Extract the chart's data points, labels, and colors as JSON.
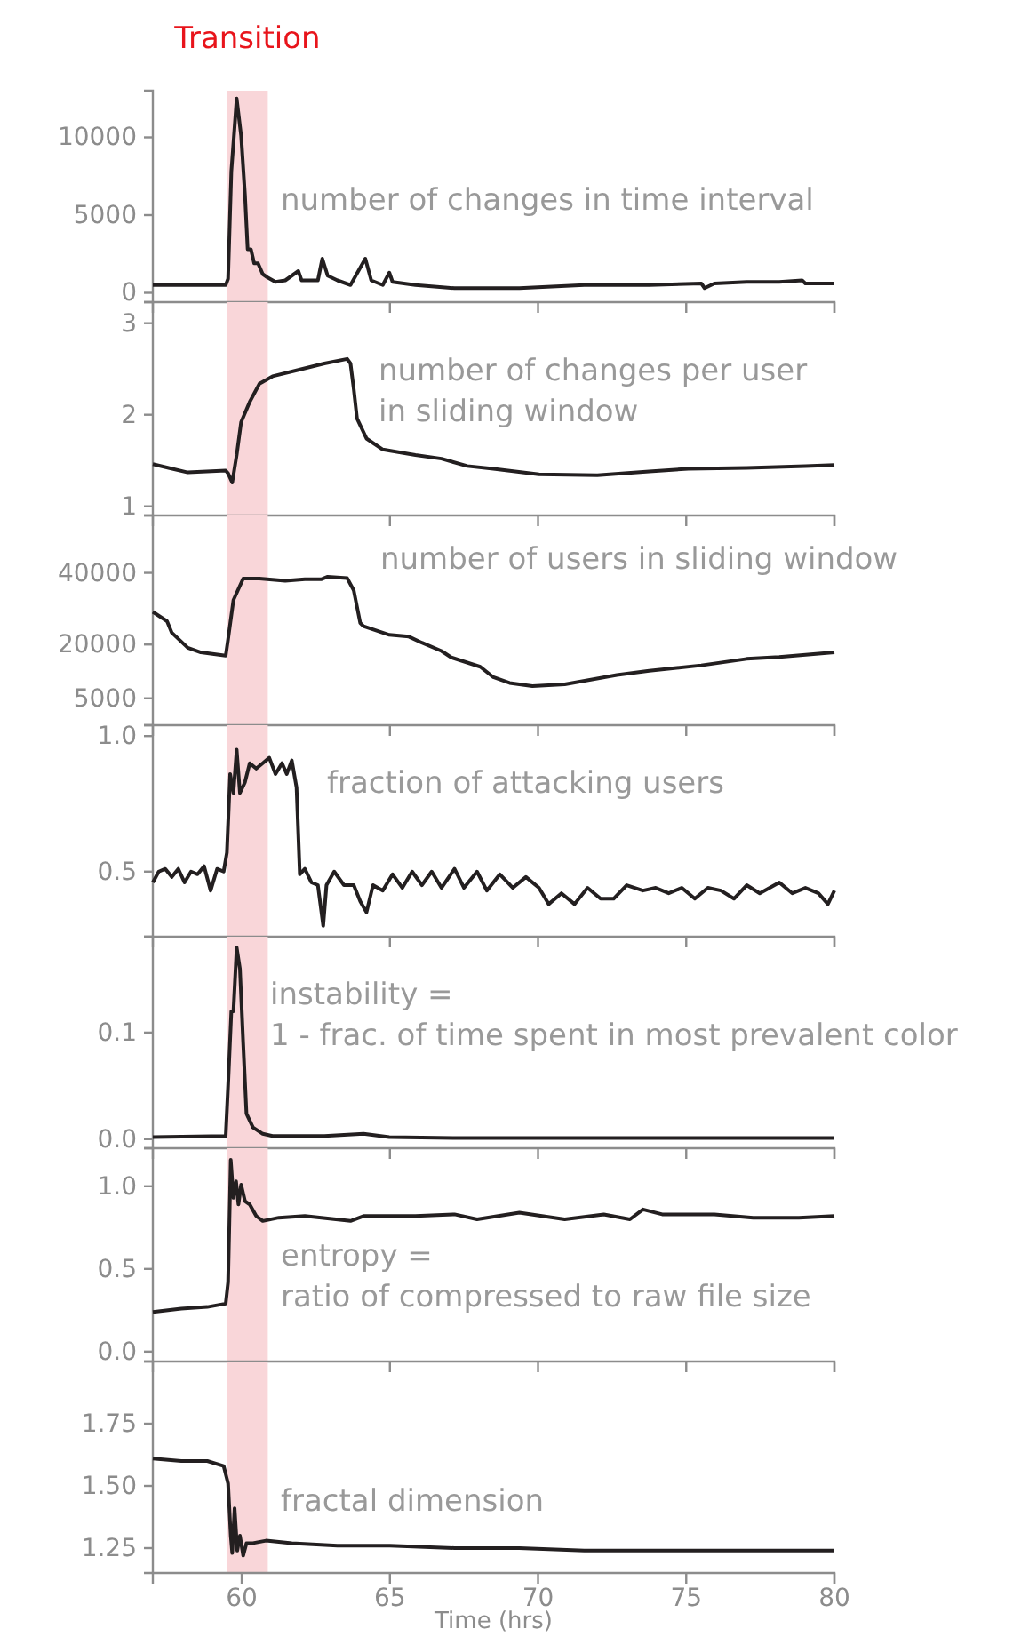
{
  "chart_data": [
    {
      "type": "line",
      "title": "number of changes in time interval",
      "xlim": [
        57,
        80
      ],
      "xticks": [
        60,
        65,
        70,
        75,
        80
      ],
      "ylim": [
        -600,
        13000
      ],
      "yticks": [
        0,
        5000,
        10000
      ],
      "tick_labels": "y",
      "grid": false,
      "bands": [
        {
          "axis": "x",
          "from": 59.5,
          "to": 60.88,
          "label": "Transition",
          "color": "#f9d6d9"
        }
      ],
      "series": [
        {
          "color": "#231f20",
          "x": [
            57.0,
            58.4,
            59.46,
            59.54,
            59.65,
            59.83,
            59.98,
            60.11,
            60.2,
            60.31,
            60.42,
            60.55,
            60.71,
            60.86,
            61.14,
            61.47,
            61.91,
            62.02,
            62.57,
            62.72,
            62.9,
            63.23,
            63.67,
            64.17,
            64.37,
            64.76,
            64.98,
            65.09,
            65.86,
            67.18,
            69.37,
            71.56,
            73.75,
            75.51,
            75.62,
            75.95,
            77.04,
            78.14,
            78.91,
            79.02,
            80.0
          ],
          "values": [
            500,
            500,
            500,
            900,
            7800,
            12500,
            10100,
            6300,
            2800,
            2800,
            1900,
            1900,
            1200,
            1000,
            700,
            800,
            1400,
            800,
            800,
            2200,
            1100,
            800,
            500,
            2200,
            800,
            500,
            1300,
            700,
            500,
            300,
            300,
            500,
            500,
            600,
            300,
            600,
            700,
            700,
            800,
            600,
            600
          ]
        }
      ]
    },
    {
      "type": "line",
      "title": "number of changes per user\nin sliding window",
      "xlim": [
        57,
        80
      ],
      "xticks": [
        60,
        65,
        70,
        75,
        80
      ],
      "ylim": [
        0.9,
        3.23
      ],
      "yticks": [
        1,
        2,
        3
      ],
      "tick_labels": "y",
      "grid": false,
      "bands": [
        {
          "axis": "x",
          "from": 59.5,
          "to": 60.88,
          "color": "#f9d6d9"
        }
      ],
      "series": [
        {
          "color": "#231f20",
          "x": [
            57.0,
            57.53,
            58.18,
            59.46,
            59.54,
            59.68,
            59.83,
            59.98,
            60.27,
            60.6,
            61.04,
            61.91,
            62.79,
            63.56,
            63.67,
            63.78,
            63.89,
            64.21,
            64.76,
            65.86,
            66.74,
            67.61,
            68.49,
            70.03,
            72.0,
            73.75,
            75.07,
            77.04,
            79.02,
            80.0
          ],
          "values": [
            1.46,
            1.42,
            1.37,
            1.39,
            1.36,
            1.26,
            1.56,
            1.92,
            2.14,
            2.34,
            2.42,
            2.49,
            2.56,
            2.61,
            2.56,
            2.28,
            1.96,
            1.74,
            1.62,
            1.56,
            1.52,
            1.44,
            1.41,
            1.35,
            1.34,
            1.38,
            1.41,
            1.42,
            1.44,
            1.45
          ]
        }
      ]
    },
    {
      "type": "line",
      "title": "number of users in sliding window",
      "xlim": [
        57,
        80
      ],
      "xticks": [
        60,
        65,
        70,
        75,
        80
      ],
      "ylim": [
        -2500,
        56000
      ],
      "yticks": [
        5000,
        20000,
        40000
      ],
      "tick_labels": "y",
      "grid": false,
      "bands": [
        {
          "axis": "x",
          "from": 59.5,
          "to": 60.88,
          "color": "#f9d6d9"
        }
      ],
      "series": [
        {
          "color": "#231f20",
          "x": [
            57.0,
            57.48,
            57.64,
            58.18,
            58.62,
            59.46,
            59.54,
            59.72,
            60.05,
            60.6,
            61.47,
            62.13,
            62.68,
            62.9,
            63.56,
            63.78,
            64.0,
            64.11,
            64.98,
            65.64,
            66.08,
            66.74,
            67.07,
            68.05,
            68.49,
            69.04,
            69.81,
            70.9,
            72.66,
            73.75,
            75.51,
            77.04,
            78.14,
            80.0
          ],
          "values": [
            29100,
            26500,
            23300,
            19100,
            17800,
            16900,
            21500,
            32400,
            38400,
            38400,
            37800,
            38200,
            38200,
            38900,
            38500,
            35100,
            26000,
            25100,
            22700,
            22200,
            20500,
            18200,
            16400,
            13800,
            10900,
            9300,
            8400,
            8900,
            11500,
            12700,
            14200,
            16000,
            16500,
            17800
          ]
        }
      ]
    },
    {
      "type": "line",
      "title": "fraction of attacking users",
      "xlim": [
        57,
        80
      ],
      "xticks": [
        60,
        65,
        70,
        75,
        80
      ],
      "ylim": [
        0.26,
        1.04
      ],
      "yticks": [
        {
          "value": 0.5,
          "label": "0.5"
        },
        {
          "value": 1.0,
          "label": "1.0"
        }
      ],
      "tick_labels": "y",
      "grid": false,
      "bands": [
        {
          "axis": "x",
          "from": 59.5,
          "to": 60.88,
          "color": "#f9d6d9"
        }
      ],
      "series": [
        {
          "color": "#231f20",
          "x": [
            57.0,
            57.2,
            57.42,
            57.64,
            57.86,
            58.07,
            58.29,
            58.51,
            58.73,
            58.95,
            59.17,
            59.39,
            59.5,
            59.61,
            59.72,
            59.83,
            59.94,
            60.11,
            60.27,
            60.49,
            60.71,
            60.93,
            61.14,
            61.36,
            61.52,
            61.69,
            61.85,
            61.96,
            62.13,
            62.35,
            62.57,
            62.75,
            62.86,
            63.12,
            63.45,
            63.78,
            64.0,
            64.21,
            64.43,
            64.76,
            65.09,
            65.42,
            65.75,
            66.08,
            66.41,
            66.74,
            67.18,
            67.5,
            67.94,
            68.27,
            68.71,
            69.15,
            69.59,
            70.03,
            70.36,
            70.79,
            71.23,
            71.67,
            72.11,
            72.55,
            72.99,
            73.54,
            73.97,
            74.41,
            74.85,
            75.29,
            75.73,
            76.17,
            76.61,
            77.04,
            77.48,
            78.14,
            78.58,
            79.02,
            79.46,
            79.78,
            80.0
          ],
          "values": [
            0.46,
            0.5,
            0.51,
            0.48,
            0.51,
            0.46,
            0.5,
            0.49,
            0.52,
            0.43,
            0.51,
            0.5,
            0.57,
            0.86,
            0.79,
            0.95,
            0.79,
            0.83,
            0.9,
            0.88,
            0.9,
            0.92,
            0.86,
            0.9,
            0.86,
            0.91,
            0.81,
            0.49,
            0.51,
            0.46,
            0.45,
            0.3,
            0.45,
            0.5,
            0.45,
            0.45,
            0.39,
            0.35,
            0.45,
            0.43,
            0.49,
            0.44,
            0.5,
            0.45,
            0.5,
            0.44,
            0.51,
            0.44,
            0.5,
            0.43,
            0.49,
            0.44,
            0.48,
            0.44,
            0.38,
            0.42,
            0.38,
            0.44,
            0.4,
            0.4,
            0.45,
            0.43,
            0.44,
            0.42,
            0.44,
            0.4,
            0.44,
            0.43,
            0.4,
            0.45,
            0.42,
            0.46,
            0.42,
            0.44,
            0.42,
            0.38,
            0.43
          ]
        }
      ]
    },
    {
      "type": "line",
      "title": "instability =\n1 - frac. of time spent in most prevalent color",
      "xlim": [
        57,
        80
      ],
      "xticks": [
        60,
        65,
        70,
        75,
        80
      ],
      "ylim": [
        -0.0085,
        0.19
      ],
      "yticks": [
        {
          "value": 0,
          "label": "0.0"
        },
        0.1
      ],
      "tick_labels": "y",
      "grid": false,
      "bands": [
        {
          "axis": "x",
          "from": 59.5,
          "to": 60.88,
          "color": "#f9d6d9"
        }
      ],
      "series": [
        {
          "color": "#231f20",
          "x": [
            57.0,
            59.46,
            59.54,
            59.65,
            59.72,
            59.83,
            59.94,
            60.05,
            60.16,
            60.38,
            60.71,
            61.04,
            62.79,
            64.11,
            64.98,
            67.18,
            80.0
          ],
          "values": [
            0.002,
            0.003,
            0.05,
            0.12,
            0.12,
            0.18,
            0.16,
            0.09,
            0.024,
            0.011,
            0.005,
            0.003,
            0.003,
            0.005,
            0.002,
            0.001,
            0.001
          ]
        }
      ]
    },
    {
      "type": "line",
      "title": "entropy =\nratio of compressed to raw file size",
      "xlim": [
        57,
        80
      ],
      "xticks": [
        60,
        65,
        70,
        75,
        80
      ],
      "ylim": [
        -0.06,
        1.23
      ],
      "yticks": [
        {
          "value": 0,
          "label": "0.0"
        },
        0.5,
        {
          "value": 1.0,
          "label": "1.0"
        }
      ],
      "tick_labels": "y",
      "grid": false,
      "bands": [
        {
          "axis": "x",
          "from": 59.5,
          "to": 60.88,
          "color": "#f9d6d9"
        }
      ],
      "series": [
        {
          "color": "#231f20",
          "x": [
            57.0,
            57.96,
            58.84,
            59.46,
            59.54,
            59.63,
            59.72,
            59.81,
            59.89,
            59.98,
            60.11,
            60.27,
            60.49,
            60.71,
            61.25,
            62.13,
            63.67,
            64.11,
            65.86,
            67.18,
            67.94,
            69.37,
            70.9,
            72.22,
            73.1,
            73.54,
            74.19,
            75.95,
            77.26,
            78.8,
            80.0
          ],
          "values": [
            0.24,
            0.26,
            0.27,
            0.29,
            0.42,
            1.16,
            0.93,
            1.03,
            0.89,
            1.01,
            0.91,
            0.89,
            0.82,
            0.79,
            0.81,
            0.82,
            0.79,
            0.82,
            0.82,
            0.83,
            0.8,
            0.84,
            0.8,
            0.83,
            0.8,
            0.86,
            0.83,
            0.83,
            0.81,
            0.81,
            0.82
          ]
        }
      ]
    },
    {
      "type": "line",
      "title": "fractal dimension",
      "xlabel": "Time (hrs)",
      "xlim": [
        57,
        80
      ],
      "xticks": [
        60,
        65,
        70,
        75,
        80
      ],
      "ylim": [
        1.15,
        2.0
      ],
      "yticks": [
        1.25,
        {
          "value": 1.5,
          "label": "1.50"
        },
        1.75
      ],
      "grid": false,
      "bands": [
        {
          "axis": "x",
          "from": 59.5,
          "to": 60.88,
          "color": "#f9d6d9"
        }
      ],
      "series": [
        {
          "color": "#231f20",
          "x": [
            57.0,
            57.96,
            58.84,
            59.39,
            59.54,
            59.63,
            59.68,
            59.76,
            59.85,
            59.94,
            60.05,
            60.16,
            60.38,
            60.82,
            61.69,
            63.23,
            65.0,
            67.18,
            69.37,
            71.56,
            73.75,
            75.95,
            78.14,
            80.0
          ],
          "values": [
            1.61,
            1.6,
            1.6,
            1.58,
            1.51,
            1.3,
            1.23,
            1.41,
            1.24,
            1.3,
            1.22,
            1.27,
            1.27,
            1.28,
            1.27,
            1.26,
            1.26,
            1.25,
            1.25,
            1.24,
            1.24,
            1.24,
            1.24,
            1.24
          ]
        }
      ]
    }
  ]
}
